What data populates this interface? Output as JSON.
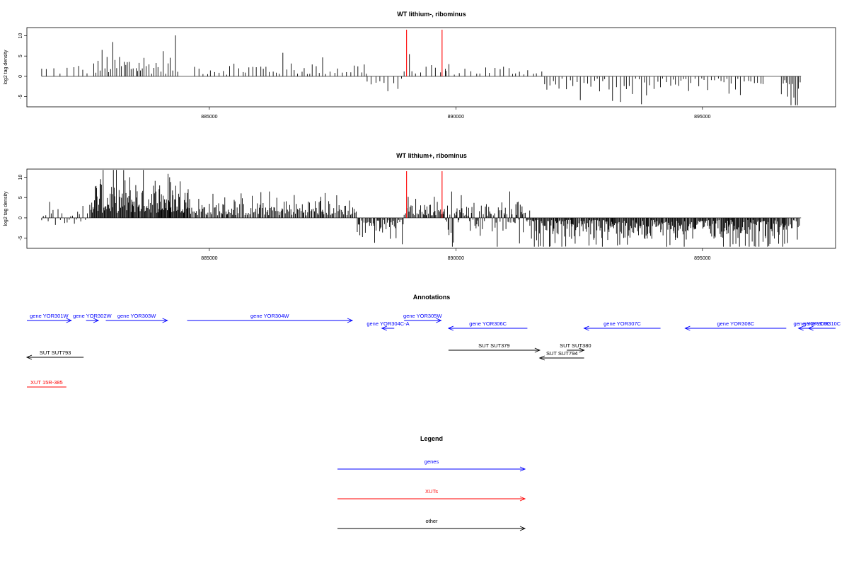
{
  "chart_data": [
    {
      "type": "bar",
      "title": "WT lithium-, ribominus",
      "ylabel": "log2 tag density",
      "ylim": [
        -7.5,
        12
      ],
      "yticks": [
        "-5",
        "0",
        "5",
        "10"
      ],
      "xlim": [
        881300,
        897700
      ],
      "xticks": [
        "885000",
        "890000",
        "895000"
      ],
      "markers": [
        889000,
        889720
      ],
      "marker_color": "#ff0000",
      "bar_color": "#000000",
      "regions": [
        {
          "start": 881600,
          "end": 882700,
          "spacing": 110,
          "level": "low",
          "amp": 1.6
        },
        {
          "start": 882700,
          "end": 884400,
          "spacing": 45,
          "level": "mid",
          "amp": 3.2
        },
        {
          "start": 884700,
          "end": 888200,
          "spacing": 70,
          "level": "low",
          "amp": 2.0
        },
        {
          "start": 888200,
          "end": 888950,
          "spacing": 90,
          "level": "neg",
          "amp": 1.6
        },
        {
          "start": 888950,
          "end": 889800,
          "spacing": 80,
          "level": "low",
          "amp": 1.8
        },
        {
          "start": 889800,
          "end": 891800,
          "spacing": 90,
          "level": "low",
          "amp": 1.3
        },
        {
          "start": 891800,
          "end": 896300,
          "spacing": 65,
          "level": "neg",
          "amp": 2.2
        },
        {
          "start": 896600,
          "end": 897000,
          "spacing": 30,
          "level": "neg",
          "amp": 3.6
        }
      ]
    },
    {
      "type": "bar",
      "title": "WT lithium+, ribominus",
      "ylabel": "log2 tag density",
      "ylim": [
        -7.5,
        12
      ],
      "yticks": [
        "-5",
        "0",
        "5",
        "10"
      ],
      "xlim": [
        881300,
        897700
      ],
      "xticks": [
        "885000",
        "890000",
        "895000"
      ],
      "markers": [
        889000,
        889720
      ],
      "marker_color": "#ff0000",
      "bar_color": "#000000",
      "regions": [
        {
          "start": 881600,
          "end": 882600,
          "spacing": 40,
          "level": "mix",
          "amp": 1.8
        },
        {
          "start": 882600,
          "end": 884600,
          "spacing": 14,
          "level": "high",
          "amp": 5.5
        },
        {
          "start": 884600,
          "end": 888000,
          "spacing": 22,
          "level": "mid",
          "amp": 2.4
        },
        {
          "start": 888000,
          "end": 888950,
          "spacing": 22,
          "level": "neg",
          "amp": 2.5
        },
        {
          "start": 888950,
          "end": 889750,
          "spacing": 22,
          "level": "mid",
          "amp": 2.2
        },
        {
          "start": 889750,
          "end": 891500,
          "spacing": 18,
          "level": "mix",
          "amp": 2.6
        },
        {
          "start": 891500,
          "end": 896700,
          "spacing": 16,
          "level": "neg",
          "amp": 3.0
        },
        {
          "start": 896700,
          "end": 897000,
          "spacing": 25,
          "level": "neg",
          "amp": 3.6
        }
      ]
    }
  ],
  "annotations": {
    "title": "Annotations",
    "colors": {
      "genes": "#0000ff",
      "xuts": "#ff0000",
      "other": "#000000"
    },
    "features": [
      {
        "label": "gene YOR301W",
        "color": "genes",
        "dir": "right",
        "start": 881200,
        "end": 882200,
        "row": 0
      },
      {
        "label": "gene YOR302W",
        "color": "genes",
        "dir": "right",
        "start": 882500,
        "end": 882750,
        "row": 0
      },
      {
        "label": "gene YOR303W",
        "color": "genes",
        "dir": "right",
        "start": 882900,
        "end": 884150,
        "row": 0
      },
      {
        "label": "gene YOR304W",
        "color": "genes",
        "dir": "right",
        "start": 884550,
        "end": 887900,
        "row": 0
      },
      {
        "label": "gene YOR304C-A",
        "color": "genes",
        "dir": "left",
        "start": 888500,
        "end": 888750,
        "row": 1
      },
      {
        "label": "gene YOR305W",
        "color": "genes",
        "dir": "right",
        "start": 888950,
        "end": 889700,
        "row": 0
      },
      {
        "label": "gene YOR306C",
        "color": "genes",
        "dir": "left",
        "start": 889850,
        "end": 891450,
        "row": 1
      },
      {
        "label": "gene YOR307C",
        "color": "genes",
        "dir": "left",
        "start": 892600,
        "end": 894150,
        "row": 1
      },
      {
        "label": "gene YOR308C",
        "color": "genes",
        "dir": "left",
        "start": 894650,
        "end": 896700,
        "row": 1
      },
      {
        "label": "gene YOR309C",
        "color": "genes",
        "dir": "left",
        "start": 896950,
        "end": 897500,
        "row": 1
      },
      {
        "label": "gene YOR310C",
        "color": "genes",
        "dir": "left",
        "start": 897150,
        "end": 897900,
        "row": 1
      },
      {
        "label": "SUT SUT793",
        "color": "other",
        "dir": "left",
        "start": 881300,
        "end": 882450,
        "row": 2
      },
      {
        "label": "SUT SUT379",
        "color": "other",
        "dir": "right",
        "start": 889850,
        "end": 891700,
        "row": 3
      },
      {
        "label": "SUT SUT380",
        "color": "other",
        "dir": "right",
        "start": 892250,
        "end": 892600,
        "row": 3
      },
      {
        "label": "SUT SUT794",
        "color": "other",
        "dir": "left",
        "start": 891700,
        "end": 892600,
        "row": 4
      },
      {
        "label": "XUT 15R-385",
        "color": "xuts",
        "dir": "none",
        "start": 881300,
        "end": 882100,
        "row": 5
      }
    ]
  },
  "legend": {
    "title": "Legend",
    "items": [
      {
        "label": "genes",
        "color": "#0000ff"
      },
      {
        "label": "XUTs",
        "color": "#ff0000"
      },
      {
        "label": "other",
        "color": "#000000"
      }
    ]
  }
}
